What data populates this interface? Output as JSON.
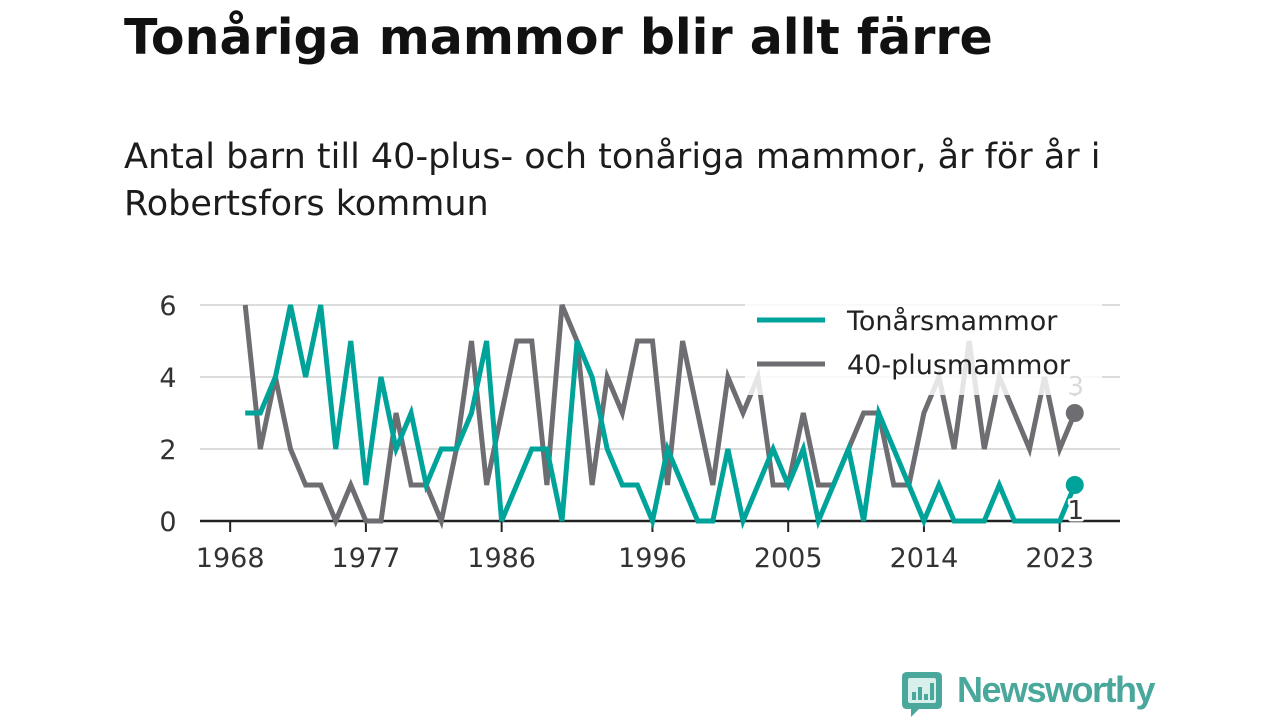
{
  "chart_data": {
    "type": "line",
    "title": "Tonåriga mammor blir allt färre",
    "subtitle": "Antal barn till 40-plus- och tonåriga mammor, år för år i Robertsfors kommun",
    "x": [
      1969,
      1970,
      1971,
      1972,
      1973,
      1974,
      1975,
      1976,
      1977,
      1978,
      1979,
      1980,
      1981,
      1982,
      1983,
      1984,
      1985,
      1986,
      1987,
      1988,
      1989,
      1990,
      1991,
      1992,
      1993,
      1994,
      1995,
      1996,
      1997,
      1998,
      1999,
      2000,
      2001,
      2002,
      2003,
      2004,
      2005,
      2006,
      2007,
      2008,
      2009,
      2010,
      2011,
      2012,
      2013,
      2014,
      2015,
      2016,
      2017,
      2018,
      2019,
      2020,
      2021,
      2022,
      2023,
      2024
    ],
    "series": [
      {
        "name": "Tonårsmammor",
        "color": "#00a399",
        "values": [
          3,
          3,
          4,
          6,
          4,
          6,
          2,
          5,
          1,
          4,
          2,
          3,
          1,
          2,
          2,
          3,
          5,
          0,
          1,
          2,
          2,
          0,
          5,
          4,
          2,
          1,
          1,
          0,
          2,
          1,
          0,
          0,
          2,
          0,
          1,
          2,
          1,
          2,
          0,
          1,
          2,
          0,
          3,
          2,
          1,
          0,
          1,
          0,
          0,
          0,
          1,
          0,
          0,
          0,
          0,
          1
        ]
      },
      {
        "name": "40-plusmammor",
        "color": "#6e6d72",
        "values": [
          6,
          2,
          4,
          2,
          1,
          1,
          0,
          1,
          0,
          0,
          3,
          1,
          1,
          0,
          2,
          5,
          1,
          3,
          5,
          5,
          1,
          6,
          5,
          1,
          4,
          3,
          5,
          5,
          1,
          5,
          3,
          1,
          4,
          3,
          4,
          1,
          1,
          3,
          1,
          1,
          2,
          3,
          3,
          1,
          1,
          3,
          4,
          2,
          5,
          2,
          4,
          3,
          2,
          4,
          2,
          3
        ]
      }
    ],
    "xticks": [
      1968,
      1977,
      1986,
      1996,
      2005,
      2014,
      2023
    ],
    "yticks": [
      0,
      2,
      4,
      6
    ],
    "xlim": [
      1966,
      2027
    ],
    "ylim": [
      0,
      6
    ],
    "grid": true,
    "legend": "top-right"
  },
  "logo": {
    "text": "Newsworthy",
    "icon": "newsworthy-logo-icon",
    "color": "#49a89b"
  }
}
